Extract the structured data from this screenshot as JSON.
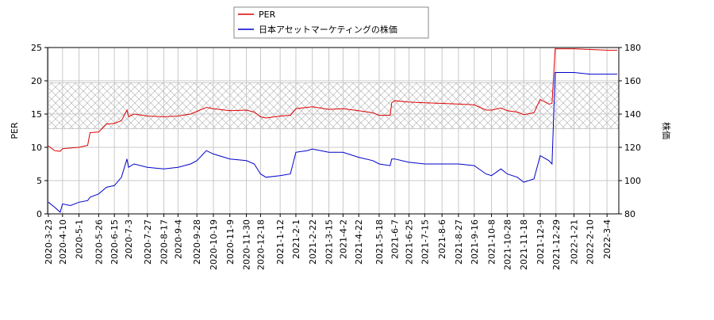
{
  "chart_data": {
    "type": "line",
    "x": [
      "2020-3-23",
      "2020-3-31",
      "2020-4-7",
      "2020-4-10",
      "2020-4-20",
      "2020-5-1",
      "2020-5-12",
      "2020-5-15",
      "2020-5-26",
      "2020-6-5",
      "2020-6-15",
      "2020-6-24",
      "2020-7-1",
      "2020-7-3",
      "2020-7-10",
      "2020-7-27",
      "2020-8-17",
      "2020-9-4",
      "2020-9-20",
      "2020-9-28",
      "2020-10-10",
      "2020-10-19",
      "2020-11-9",
      "2020-11-30",
      "2020-12-10",
      "2020-12-18",
      "2020-12-25",
      "2021-1-12",
      "2021-1-25",
      "2021-2-1",
      "2021-2-15",
      "2021-2-22",
      "2021-3-15",
      "2021-4-2",
      "2021-4-22",
      "2021-5-10",
      "2021-5-18",
      "2021-6-1",
      "2021-6-3",
      "2021-6-7",
      "2021-6-25",
      "2021-7-15",
      "2021-8-6",
      "2021-8-27",
      "2021-9-16",
      "2021-10-1",
      "2021-10-8",
      "2021-10-20",
      "2021-10-28",
      "2021-11-10",
      "2021-11-18",
      "2021-12-1",
      "2021-12-9",
      "2021-12-20",
      "2021-12-24",
      "2021-12-28",
      "2022-1-21",
      "2022-2-10",
      "2022-3-4",
      "2022-3-17"
    ],
    "series": [
      {
        "name": "PER",
        "color": "#dd0000",
        "values": [
          10.2,
          9.5,
          9.4,
          9.8,
          9.9,
          10.0,
          10.3,
          12.2,
          12.3,
          13.5,
          13.6,
          14.0,
          15.6,
          14.6,
          15.0,
          14.7,
          14.6,
          14.7,
          15.0,
          15.4,
          16.0,
          15.8,
          15.5,
          15.6,
          15.3,
          14.6,
          14.4,
          14.7,
          14.8,
          15.8,
          16.0,
          16.1,
          15.7,
          15.8,
          15.5,
          15.2,
          14.8,
          14.8,
          16.7,
          17.0,
          16.8,
          16.7,
          16.6,
          16.5,
          16.4,
          15.6,
          15.6,
          15.9,
          15.5,
          15.3,
          14.9,
          15.2,
          17.2,
          16.5,
          16.6,
          24.8,
          24.8,
          24.7,
          24.6,
          24.6
        ]
      },
      {
        "name": "日本アセットマーケティングの株価",
        "color": "#0000cc",
        "axis": "y2",
        "values": [
          87,
          84,
          81,
          86,
          85,
          87,
          88,
          90,
          92,
          96,
          97,
          102,
          113,
          108,
          110,
          108,
          107,
          108,
          110,
          112,
          118,
          116,
          113,
          112,
          110,
          104,
          102,
          103,
          104,
          117,
          118,
          119,
          117,
          117,
          114,
          112,
          110,
          109,
          113,
          113,
          111,
          110,
          110,
          110,
          109,
          104,
          103,
          107,
          104,
          102,
          99,
          101,
          115,
          112,
          110,
          165,
          165,
          164,
          164,
          164
        ]
      }
    ],
    "ylabel": "PER",
    "y2label": "株価",
    "xlim": [
      "2020-3-22",
      "2022-3-19"
    ],
    "xticks": [
      "2020-3-23",
      "2020-4-10",
      "2020-5-1",
      "2020-5-26",
      "2020-6-15",
      "2020-7-3",
      "2020-7-27",
      "2020-8-17",
      "2020-9-4",
      "2020-9-28",
      "2020-10-19",
      "2020-11-9",
      "2020-11-30",
      "2020-12-18",
      "2021-1-12",
      "2021-2-1",
      "2021-2-22",
      "2021-3-15",
      "2021-4-2",
      "2021-4-22",
      "2021-5-18",
      "2021-6-7",
      "2021-6-25",
      "2021-7-15",
      "2021-8-6",
      "2021-8-27",
      "2021-9-16",
      "2021-10-8",
      "2021-10-28",
      "2021-11-18",
      "2021-12-9",
      "2021-12-29",
      "2022-1-21",
      "2022-2-10",
      "2022-3-4"
    ],
    "ylim": [
      0,
      25
    ],
    "yticks": [
      0,
      5,
      10,
      15,
      20,
      25
    ],
    "y2lim": [
      80,
      180
    ],
    "y2ticks": [
      80,
      100,
      120,
      140,
      160,
      180
    ],
    "band": [
      12.8,
      19.7
    ],
    "grid": true,
    "legend": "top"
  }
}
